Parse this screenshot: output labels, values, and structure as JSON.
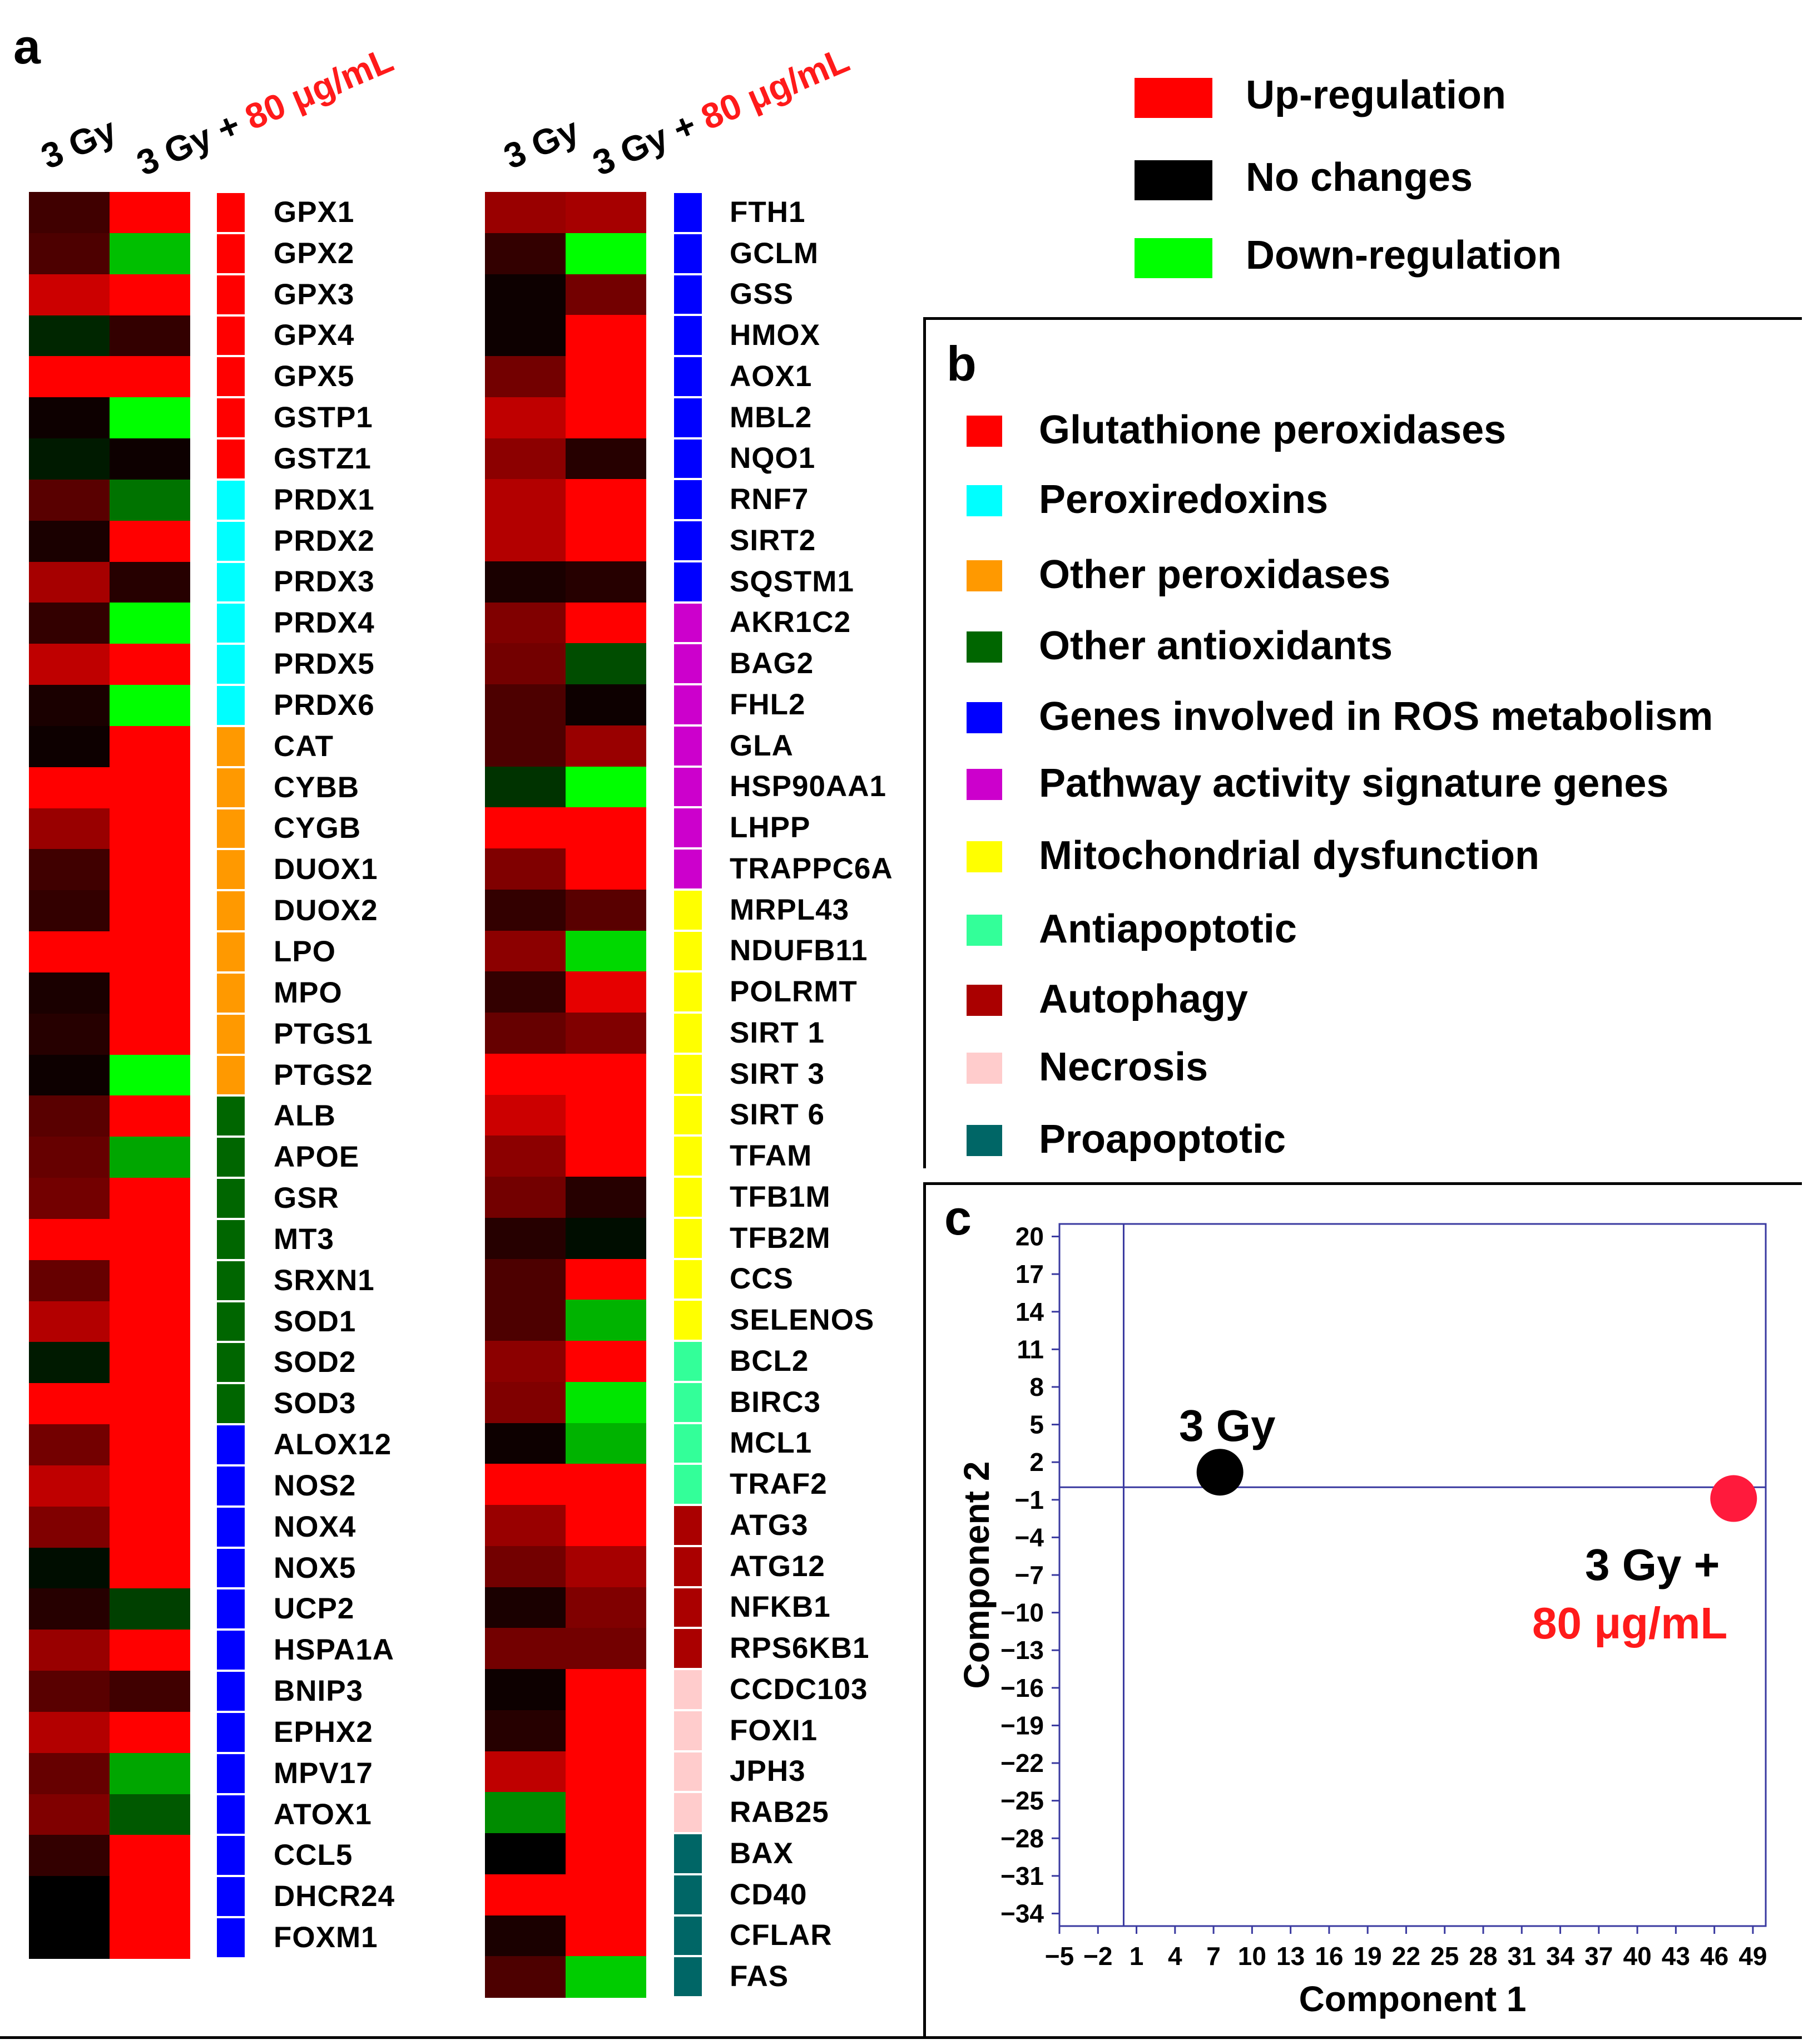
{
  "panels": {
    "a": "a",
    "b": "b",
    "c": "c"
  },
  "heatmap": {
    "col1": "3 Gy",
    "col2_prefix": "3 Gy + ",
    "col2_dose": "80 μg/mL"
  },
  "legend_a": [
    {
      "label": "Up-regulation",
      "color": "#ff0000"
    },
    {
      "label": "No changes",
      "color": "#000000"
    },
    {
      "label": "Down-regulation",
      "color": "#00ff00"
    }
  ],
  "groups": [
    {
      "label": "Glutathione peroxidases",
      "color": "#ff0000"
    },
    {
      "label": "Peroxiredoxins",
      "color": "#00ffff"
    },
    {
      "label": "Other peroxidases",
      "color": "#ff9900"
    },
    {
      "label": "Other antioxidants",
      "color": "#006600"
    },
    {
      "label": "Genes involved in ROS metabolism",
      "color": "#0000ff"
    },
    {
      "label": "Pathway activity signature genes",
      "color": "#cc00cc"
    },
    {
      "label": "Mitochondrial dysfunction",
      "color": "#ffff00"
    },
    {
      "label": "Antiapoptotic",
      "color": "#33ff99"
    },
    {
      "label": "Autophagy",
      "color": "#aa0000"
    },
    {
      "label": "Necrosis",
      "color": "#ffcccc"
    },
    {
      "label": "Proapoptotic",
      "color": "#006666"
    }
  ],
  "chart_data": [
    {
      "type": "heatmap",
      "title": "",
      "columns": [
        "3 Gy",
        "3 Gy + 80 μg/mL"
      ],
      "color_scale": {
        "up": "#ff0000",
        "none": "#000000",
        "down": "#00ff00"
      },
      "value_range": [
        -1,
        1
      ],
      "genes_left": [
        {
          "gene": "GPX1",
          "group": 0,
          "v": [
            0.25,
            1.0
          ]
        },
        {
          "gene": "GPX2",
          "group": 0,
          "v": [
            0.3,
            -0.75
          ]
        },
        {
          "gene": "GPX3",
          "group": 0,
          "v": [
            0.8,
            1.0
          ]
        },
        {
          "gene": "GPX4",
          "group": 0,
          "v": [
            -0.15,
            0.2
          ]
        },
        {
          "gene": "GPX5",
          "group": 0,
          "v": [
            1.0,
            1.0
          ]
        },
        {
          "gene": "GSTP1",
          "group": 0,
          "v": [
            0.05,
            -1.0
          ]
        },
        {
          "gene": "GSTZ1",
          "group": 0,
          "v": [
            -0.1,
            0.05
          ]
        },
        {
          "gene": "PRDX1",
          "group": 1,
          "v": [
            0.35,
            -0.45
          ]
        },
        {
          "gene": "PRDX2",
          "group": 1,
          "v": [
            0.1,
            1.0
          ]
        },
        {
          "gene": "PRDX3",
          "group": 1,
          "v": [
            0.65,
            0.15
          ]
        },
        {
          "gene": "PRDX4",
          "group": 1,
          "v": [
            0.2,
            -1.0
          ]
        },
        {
          "gene": "PRDX5",
          "group": 1,
          "v": [
            0.75,
            1.0
          ]
        },
        {
          "gene": "PRDX6",
          "group": 1,
          "v": [
            0.1,
            -1.0
          ]
        },
        {
          "gene": "CAT",
          "group": 2,
          "v": [
            0.05,
            1.0
          ]
        },
        {
          "gene": "CYBB",
          "group": 2,
          "v": [
            1.0,
            1.0
          ]
        },
        {
          "gene": "CYGB",
          "group": 2,
          "v": [
            0.6,
            1.0
          ]
        },
        {
          "gene": "DUOX1",
          "group": 2,
          "v": [
            0.25,
            1.0
          ]
        },
        {
          "gene": "DUOX2",
          "group": 2,
          "v": [
            0.2,
            1.0
          ]
        },
        {
          "gene": "LPO",
          "group": 2,
          "v": [
            1.0,
            1.0
          ]
        },
        {
          "gene": "MPO",
          "group": 2,
          "v": [
            0.1,
            1.0
          ]
        },
        {
          "gene": "PTGS1",
          "group": 2,
          "v": [
            0.15,
            1.0
          ]
        },
        {
          "gene": "PTGS2",
          "group": 2,
          "v": [
            0.05,
            -1.0
          ]
        },
        {
          "gene": "ALB",
          "group": 3,
          "v": [
            0.35,
            1.0
          ]
        },
        {
          "gene": "APOE",
          "group": 3,
          "v": [
            0.4,
            -0.65
          ]
        },
        {
          "gene": "GSR",
          "group": 3,
          "v": [
            0.45,
            1.0
          ]
        },
        {
          "gene": "MT3",
          "group": 3,
          "v": [
            1.0,
            1.0
          ]
        },
        {
          "gene": "SRXN1",
          "group": 3,
          "v": [
            0.4,
            1.0
          ]
        },
        {
          "gene": "SOD1",
          "group": 3,
          "v": [
            0.7,
            1.0
          ]
        },
        {
          "gene": "SOD2",
          "group": 3,
          "v": [
            -0.1,
            1.0
          ]
        },
        {
          "gene": "SOD3",
          "group": 3,
          "v": [
            1.0,
            1.0
          ]
        },
        {
          "gene": "ALOX12",
          "group": 4,
          "v": [
            0.45,
            1.0
          ]
        },
        {
          "gene": "NOS2",
          "group": 4,
          "v": [
            0.75,
            1.0
          ]
        },
        {
          "gene": "NOX4",
          "group": 4,
          "v": [
            0.5,
            1.0
          ]
        },
        {
          "gene": "NOX5",
          "group": 4,
          "v": [
            -0.05,
            1.0
          ]
        },
        {
          "gene": "UCP2",
          "group": 4,
          "v": [
            0.15,
            -0.25
          ]
        },
        {
          "gene": "HSPA1A",
          "group": 4,
          "v": [
            0.6,
            1.0
          ]
        },
        {
          "gene": "BNIP3",
          "group": 4,
          "v": [
            0.35,
            0.25
          ]
        },
        {
          "gene": "EPHX2",
          "group": 4,
          "v": [
            0.7,
            1.0
          ]
        },
        {
          "gene": "MPV17",
          "group": 4,
          "v": [
            0.4,
            -0.65
          ]
        },
        {
          "gene": "ATOX1",
          "group": 4,
          "v": [
            0.5,
            -0.35
          ]
        },
        {
          "gene": "CCL5",
          "group": 4,
          "v": [
            0.2,
            1.0
          ]
        },
        {
          "gene": "DHCR24",
          "group": 4,
          "v": [
            0.0,
            1.0
          ]
        },
        {
          "gene": "FOXM1",
          "group": 4,
          "v": [
            0.0,
            1.0
          ]
        }
      ],
      "genes_right": [
        {
          "gene": "FTH1",
          "group": 4,
          "v": [
            0.6,
            0.65
          ]
        },
        {
          "gene": "GCLM",
          "group": 4,
          "v": [
            0.2,
            -1.0
          ]
        },
        {
          "gene": "GSS",
          "group": 4,
          "v": [
            0.05,
            0.45
          ]
        },
        {
          "gene": "HMOX",
          "group": 4,
          "v": [
            0.05,
            1.0
          ]
        },
        {
          "gene": "AOX1",
          "group": 4,
          "v": [
            0.45,
            1.0
          ]
        },
        {
          "gene": "MBL2",
          "group": 4,
          "v": [
            0.75,
            1.0
          ]
        },
        {
          "gene": "NQO1",
          "group": 4,
          "v": [
            0.55,
            0.15
          ]
        },
        {
          "gene": "RNF7",
          "group": 4,
          "v": [
            0.7,
            1.0
          ]
        },
        {
          "gene": "SIRT2",
          "group": 4,
          "v": [
            0.7,
            1.0
          ]
        },
        {
          "gene": "SQSTM1",
          "group": 4,
          "v": [
            0.1,
            0.15
          ]
        },
        {
          "gene": "AKR1C2",
          "group": 5,
          "v": [
            0.5,
            1.0
          ]
        },
        {
          "gene": "BAG2",
          "group": 5,
          "v": [
            0.45,
            -0.3
          ]
        },
        {
          "gene": "FHL2",
          "group": 5,
          "v": [
            0.3,
            0.05
          ]
        },
        {
          "gene": "GLA",
          "group": 5,
          "v": [
            0.3,
            0.6
          ]
        },
        {
          "gene": "HSP90AA1",
          "group": 5,
          "v": [
            -0.2,
            -1.0
          ]
        },
        {
          "gene": "LHPP",
          "group": 5,
          "v": [
            1.0,
            1.0
          ]
        },
        {
          "gene": "TRAPPC6A",
          "group": 5,
          "v": [
            0.5,
            1.0
          ]
        },
        {
          "gene": "MRPL43",
          "group": 6,
          "v": [
            0.2,
            0.35
          ]
        },
        {
          "gene": "NDUFB11",
          "group": 6,
          "v": [
            0.55,
            -0.85
          ]
        },
        {
          "gene": "POLRMT",
          "group": 6,
          "v": [
            0.2,
            0.9
          ]
        },
        {
          "gene": "SIRT 1",
          "group": 6,
          "v": [
            0.4,
            0.5
          ]
        },
        {
          "gene": "SIRT 3",
          "group": 6,
          "v": [
            1.0,
            1.0
          ]
        },
        {
          "gene": "SIRT 6",
          "group": 6,
          "v": [
            0.8,
            1.0
          ]
        },
        {
          "gene": "TFAM",
          "group": 6,
          "v": [
            0.55,
            1.0
          ]
        },
        {
          "gene": "TFB1M",
          "group": 6,
          "v": [
            0.45,
            0.15
          ]
        },
        {
          "gene": "TFB2M",
          "group": 6,
          "v": [
            0.15,
            -0.05
          ]
        },
        {
          "gene": "CCS",
          "group": 6,
          "v": [
            0.3,
            1.0
          ]
        },
        {
          "gene": "SELENOS",
          "group": 6,
          "v": [
            0.3,
            -0.7
          ]
        },
        {
          "gene": "BCL2",
          "group": 7,
          "v": [
            0.55,
            1.0
          ]
        },
        {
          "gene": "BIRC3",
          "group": 7,
          "v": [
            0.5,
            -0.9
          ]
        },
        {
          "gene": "MCL1",
          "group": 7,
          "v": [
            0.05,
            -0.7
          ]
        },
        {
          "gene": "TRAF2",
          "group": 7,
          "v": [
            1.0,
            1.0
          ]
        },
        {
          "gene": "ATG3",
          "group": 8,
          "v": [
            0.6,
            1.0
          ]
        },
        {
          "gene": "ATG12",
          "group": 8,
          "v": [
            0.45,
            0.65
          ]
        },
        {
          "gene": "NFKB1",
          "group": 8,
          "v": [
            0.1,
            0.5
          ]
        },
        {
          "gene": "RPS6KB1",
          "group": 8,
          "v": [
            0.45,
            0.45
          ]
        },
        {
          "gene": "CCDC103",
          "group": 9,
          "v": [
            0.05,
            1.0
          ]
        },
        {
          "gene": "FOXI1",
          "group": 9,
          "v": [
            0.15,
            1.0
          ]
        },
        {
          "gene": "JPH3",
          "group": 9,
          "v": [
            0.75,
            1.0
          ]
        },
        {
          "gene": "RAB25",
          "group": 9,
          "v": [
            -0.55,
            1.0
          ]
        },
        {
          "gene": "BAX",
          "group": 10,
          "v": [
            0.0,
            1.0
          ]
        },
        {
          "gene": "CD40",
          "group": 10,
          "v": [
            1.0,
            1.0
          ]
        },
        {
          "gene": "CFLAR",
          "group": 10,
          "v": [
            0.1,
            1.0
          ]
        },
        {
          "gene": "FAS",
          "group": 10,
          "v": [
            0.3,
            -0.8
          ]
        }
      ]
    },
    {
      "type": "scatter",
      "title": "",
      "xlabel": "Component 1",
      "ylabel": "Component 2",
      "xlim": [
        -5,
        50
      ],
      "ylim": [
        -35,
        21
      ],
      "xticks": [
        -5,
        -2,
        1,
        4,
        7,
        10,
        13,
        16,
        19,
        22,
        25,
        28,
        31,
        34,
        37,
        40,
        43,
        46,
        49
      ],
      "xtick_labels": [
        "−5",
        "−2",
        "1",
        "4",
        "7",
        "10",
        "13",
        "16",
        "19",
        "22",
        "25",
        "28",
        "31",
        "34",
        "37",
        "40",
        "43",
        "46",
        "49"
      ],
      "yticks": [
        20,
        17,
        14,
        11,
        8,
        5,
        2,
        -1,
        -4,
        -7,
        -10,
        -13,
        -16,
        -19,
        -22,
        -25,
        -28,
        -31,
        -34
      ],
      "ytick_labels": [
        "20",
        "17",
        "14",
        "11",
        "8",
        "5",
        "2",
        "−1",
        "−4",
        "−7",
        "−10",
        "−13",
        "−16",
        "−19",
        "−22",
        "−25",
        "−28",
        "−31",
        "−34"
      ],
      "reference_lines": {
        "x": 0,
        "y": 0
      },
      "points": [
        {
          "name": "3 Gy",
          "x": 7.5,
          "y": 1.2,
          "color": "#000000"
        },
        {
          "name": "3 Gy + 80 μg/mL",
          "x": 47.5,
          "y": -0.9,
          "color": "#ff1a3c"
        }
      ],
      "annotations": [
        {
          "text": "3 Gy",
          "color": "#000000"
        },
        {
          "text": "3 Gy +",
          "color": "#000000"
        },
        {
          "text": "80 μg/mL",
          "color": "#ff1a1a"
        }
      ]
    }
  ]
}
